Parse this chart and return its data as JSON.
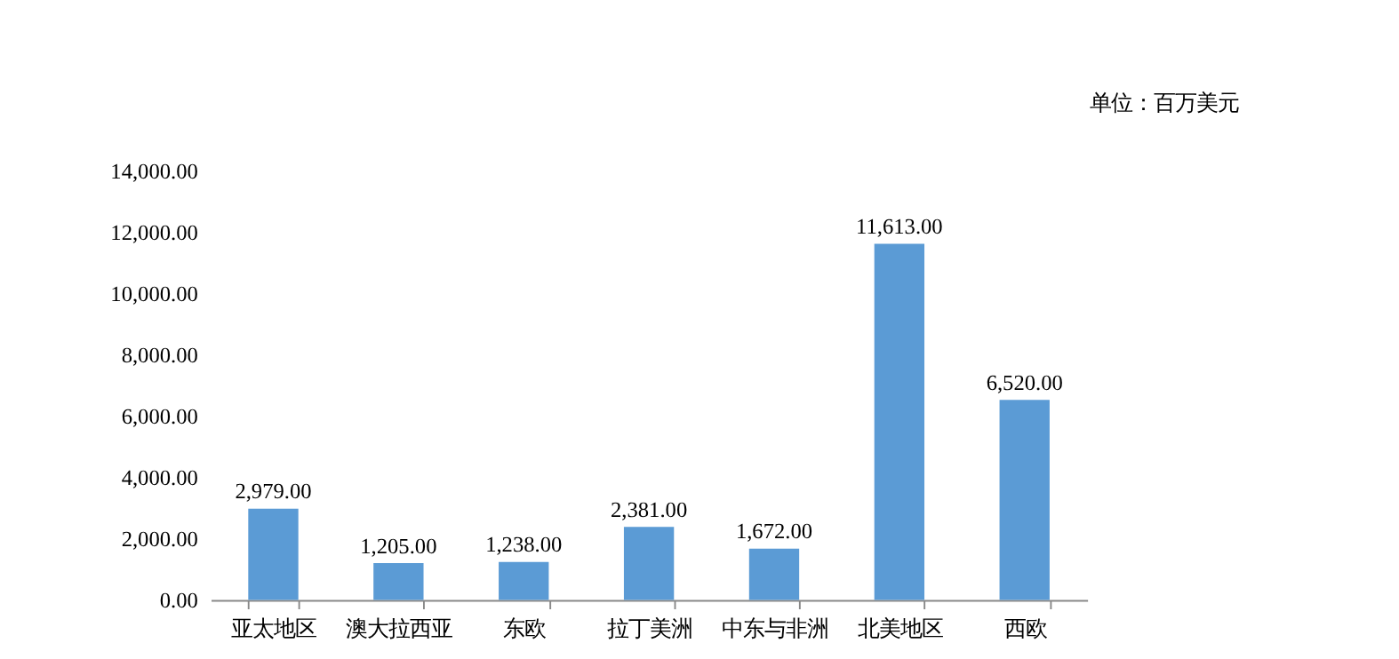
{
  "chart_data": {
    "type": "bar",
    "categories": [
      "亚太地区",
      "澳大拉西亚",
      "东欧",
      "拉丁美洲",
      "中东与非洲",
      "北美地区",
      "西欧"
    ],
    "values": [
      2979,
      1205,
      1238,
      2381,
      1672,
      11613,
      6520
    ],
    "value_labels": [
      "2,979.00",
      "1,205.00",
      "1,238.00",
      "2,381.00",
      "1,672.00",
      "11,613.00",
      "6,520.00"
    ],
    "color": "#5b9bd5",
    "ylim": [
      0,
      14000
    ],
    "yticks": [
      {
        "value": 0,
        "label": "0.00"
      },
      {
        "value": 2000,
        "label": "2,000.00"
      },
      {
        "value": 4000,
        "label": "4,000.00"
      },
      {
        "value": 6000,
        "label": "6,000.00"
      },
      {
        "value": 8000,
        "label": "8,000.00"
      },
      {
        "value": 10000,
        "label": "10,000.00"
      },
      {
        "value": 12000,
        "label": "12,000.00"
      },
      {
        "value": 14000,
        "label": "14,000.00"
      }
    ],
    "annotations": [
      "单位：百万美元"
    ],
    "grid": false
  }
}
